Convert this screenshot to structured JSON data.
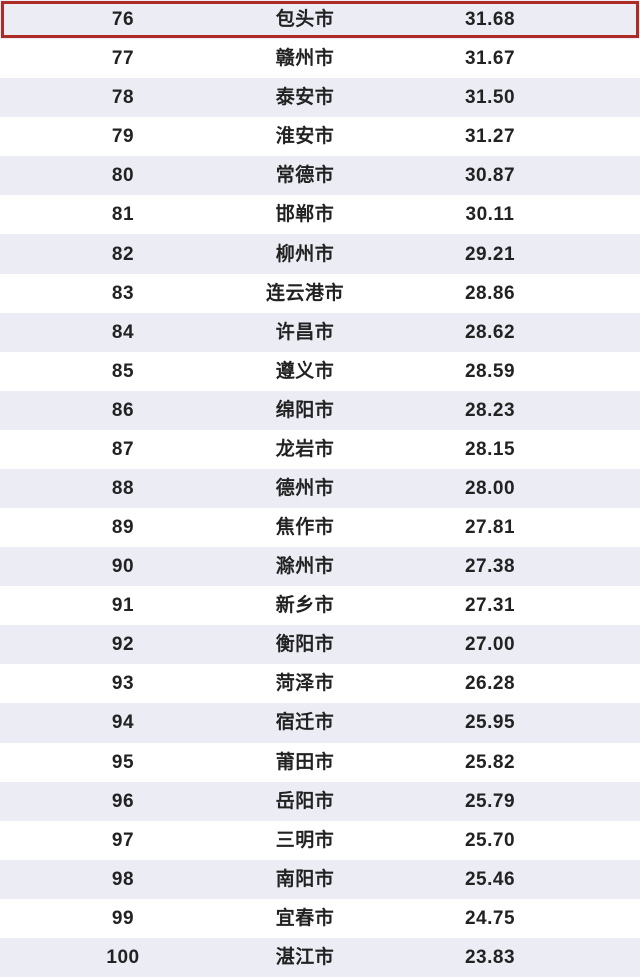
{
  "table": {
    "description": "City ranking list rows 76-100 with scores",
    "columns": [
      "rank",
      "city",
      "value"
    ],
    "rows": [
      {
        "rank": "76",
        "city": "包头市",
        "value": "31.68",
        "highlighted": true
      },
      {
        "rank": "77",
        "city": "赣州市",
        "value": "31.67",
        "highlighted": false
      },
      {
        "rank": "78",
        "city": "泰安市",
        "value": "31.50",
        "highlighted": false
      },
      {
        "rank": "79",
        "city": "淮安市",
        "value": "31.27",
        "highlighted": false
      },
      {
        "rank": "80",
        "city": "常德市",
        "value": "30.87",
        "highlighted": false
      },
      {
        "rank": "81",
        "city": "邯郸市",
        "value": "30.11",
        "highlighted": false
      },
      {
        "rank": "82",
        "city": "柳州市",
        "value": "29.21",
        "highlighted": false
      },
      {
        "rank": "83",
        "city": "连云港市",
        "value": "28.86",
        "highlighted": false
      },
      {
        "rank": "84",
        "city": "许昌市",
        "value": "28.62",
        "highlighted": false
      },
      {
        "rank": "85",
        "city": "遵义市",
        "value": "28.59",
        "highlighted": false
      },
      {
        "rank": "86",
        "city": "绵阳市",
        "value": "28.23",
        "highlighted": false
      },
      {
        "rank": "87",
        "city": "龙岩市",
        "value": "28.15",
        "highlighted": false
      },
      {
        "rank": "88",
        "city": "德州市",
        "value": "28.00",
        "highlighted": false
      },
      {
        "rank": "89",
        "city": "焦作市",
        "value": "27.81",
        "highlighted": false
      },
      {
        "rank": "90",
        "city": "滁州市",
        "value": "27.38",
        "highlighted": false
      },
      {
        "rank": "91",
        "city": "新乡市",
        "value": "27.31",
        "highlighted": false
      },
      {
        "rank": "92",
        "city": "衡阳市",
        "value": "27.00",
        "highlighted": false
      },
      {
        "rank": "93",
        "city": "菏泽市",
        "value": "26.28",
        "highlighted": false
      },
      {
        "rank": "94",
        "city": "宿迁市",
        "value": "25.95",
        "highlighted": false
      },
      {
        "rank": "95",
        "city": "莆田市",
        "value": "25.82",
        "highlighted": false
      },
      {
        "rank": "96",
        "city": "岳阳市",
        "value": "25.79",
        "highlighted": false
      },
      {
        "rank": "97",
        "city": "三明市",
        "value": "25.70",
        "highlighted": false
      },
      {
        "rank": "98",
        "city": "南阳市",
        "value": "25.46",
        "highlighted": false
      },
      {
        "rank": "99",
        "city": "宜春市",
        "value": "24.75",
        "highlighted": false
      },
      {
        "rank": "100",
        "city": "湛江市",
        "value": "23.83",
        "highlighted": false
      }
    ]
  },
  "colors": {
    "row_shaded": "#ebecf4",
    "row_plain": "#ffffff",
    "text_color": "#222222",
    "highlight_border": "#ae2a24",
    "page_bg": "#ffffff"
  }
}
